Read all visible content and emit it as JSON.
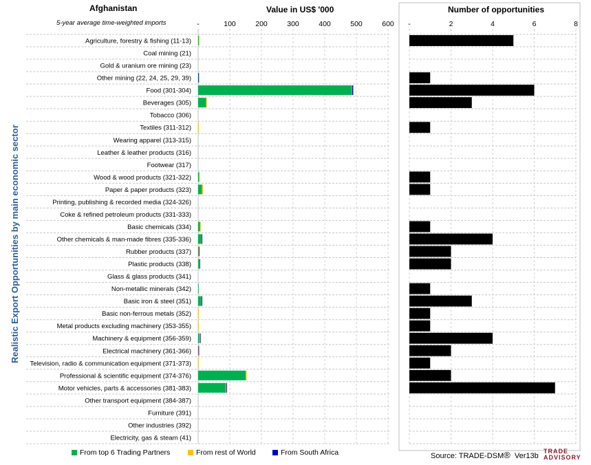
{
  "header": {
    "country": "Afghanistan",
    "subtitle": "5-year average time-weighted imports",
    "value_title": "Value in US$ '000",
    "count_title": "Number of opportunities"
  },
  "y_axis_label": "Realistic Export Opportunities by main economic sector",
  "legend": [
    {
      "label": "From top 6 Trading Partners",
      "color": "#00b050"
    },
    {
      "label": "From rest of World",
      "color": "#ffc000"
    },
    {
      "label": "From South Africa",
      "color": "#0000cc"
    }
  ],
  "source": {
    "text": "Source: TRADE-DSM",
    "mark": "®",
    "version": "Ver13b"
  },
  "logo": {
    "line1": "TRADE",
    "line2": "ADVISORY"
  },
  "chart_data": [
    {
      "type": "bar",
      "orientation": "horizontal",
      "stacked": true,
      "title": "Value in US$ '000",
      "xlim": [
        0,
        600
      ],
      "ticks": [
        "-",
        "100",
        "200",
        "300",
        "400",
        "500",
        "600"
      ],
      "categories": [
        "Agriculture, forestry & fishing (11-13)",
        "Coal mining (21)",
        "Gold & uranium ore mining (23)",
        "Other mining (22, 24, 25, 29, 39)",
        "Food (301-304)",
        "Beverages (305)",
        "Tobacco (306)",
        "Textiles (311-312)",
        "Wearing apparel (313-315)",
        "Leather & leather products (316)",
        "Footwear (317)",
        "Wood & wood products (321-322)",
        "Paper & paper products (323)",
        "Printing, publishing & recorded media (324-326)",
        "Coke & refined petroleum products (331-333)",
        "Basic chemicals (334)",
        "Other chemicals & man-made fibres (335-336)",
        "Rubber products (337)",
        "Plastic products (338)",
        "Glass & glass products (341)",
        "Non-metallic minerals (342)",
        "Basic iron & steel (351)",
        "Basic non-ferrous metals (352)",
        "Metal products excluding machinery (353-355)",
        "Machinery & equipment (356-359)",
        "Electrical machinery (361-366)",
        "Television, radio & communication equipment (371-373)",
        "Professional & scientific equipment (374-376)",
        "Motor vehicles, parts & accessories (381-383)",
        "Other transport equipment (384-387)",
        "Furniture (391)",
        "Other industries (392)",
        "Electricity, gas & steam (41)"
      ],
      "series": [
        {
          "name": "From top 6 Trading Partners",
          "color": "#00b050",
          "values": [
            2,
            0,
            0,
            1,
            486,
            25,
            0,
            0,
            0,
            0,
            0,
            3,
            12,
            0,
            0,
            6,
            10,
            1,
            3,
            0,
            1,
            10,
            0,
            0,
            4,
            0,
            0,
            150,
            87,
            0,
            0,
            0,
            0
          ]
        },
        {
          "name": "From rest of World",
          "color": "#ffc000",
          "values": [
            2,
            0,
            0,
            0,
            1,
            2,
            0,
            2,
            0,
            0,
            0,
            2,
            3,
            0,
            0,
            2,
            1,
            1,
            1,
            0,
            0,
            1,
            2,
            1,
            2,
            1,
            1,
            3,
            2,
            0,
            0,
            0,
            0
          ]
        },
        {
          "name": "From South Africa",
          "color": "#0000cc",
          "values": [
            0,
            0,
            0,
            1,
            3,
            0,
            0,
            0,
            0,
            0,
            0,
            0,
            0,
            0,
            0,
            0,
            2,
            2,
            2,
            0,
            0,
            2,
            0,
            0,
            2,
            2,
            0,
            0,
            2,
            0,
            0,
            0,
            0
          ]
        }
      ]
    },
    {
      "type": "bar",
      "orientation": "horizontal",
      "title": "Number of opportunities",
      "xlim": [
        0,
        8
      ],
      "ticks": [
        "-",
        "2",
        "4",
        "6",
        "8"
      ],
      "color": "#000000",
      "values": [
        5,
        0,
        0,
        1,
        6,
        3,
        0,
        1,
        0,
        0,
        0,
        1,
        1,
        0,
        0,
        1,
        4,
        2,
        2,
        0,
        1,
        3,
        1,
        1,
        4,
        2,
        1,
        2,
        7,
        0,
        0,
        0,
        0
      ]
    }
  ]
}
